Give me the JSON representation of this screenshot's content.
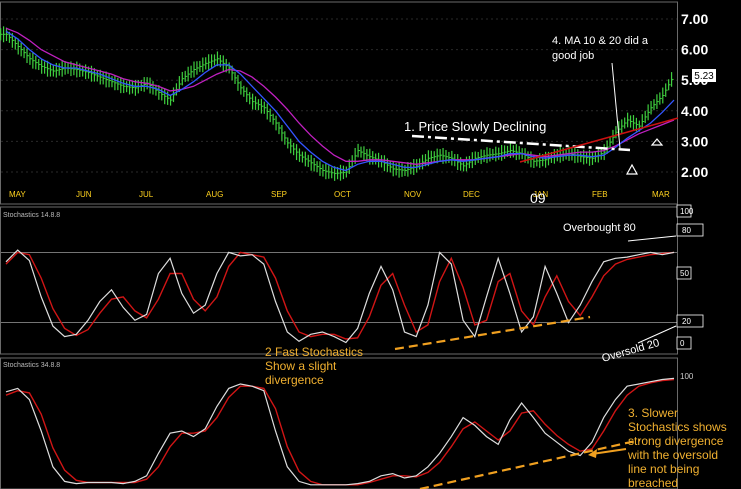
{
  "chart_data": [
    {
      "type": "line",
      "panel": "price",
      "price_ticks": [
        "7.00",
        "6.00",
        "5.00",
        "4.00",
        "3.00",
        "2.00"
      ],
      "price_tick_values": [
        7,
        6,
        5,
        4,
        3,
        2
      ],
      "ylim": [
        1.6,
        7.4
      ],
      "months": [
        "MAY",
        "JUN",
        "JUL",
        "AUG",
        "SEP",
        "OCT",
        "NOV",
        "DEC",
        "JAN",
        "FEB",
        "MAR"
      ],
      "year_marker": "09",
      "last_price_label": "5.23",
      "series": [
        {
          "values": [
            6.5,
            6.1,
            5.7,
            5.45,
            5.3,
            5.4,
            5.35,
            5.25,
            5.1,
            4.95,
            4.8,
            4.75,
            4.9,
            4.6,
            4.35,
            5.05,
            5.35,
            5.55,
            5.7,
            5.4,
            4.75,
            4.3,
            4.1,
            3.6,
            2.95,
            2.55,
            2.3,
            2.05,
            1.95,
            2.0,
            2.7,
            2.5,
            2.35,
            2.1,
            2.05,
            2.2,
            2.45,
            2.55,
            2.45,
            2.2,
            2.45,
            2.55,
            2.6,
            2.7,
            2.6,
            2.35,
            2.4,
            2.55,
            2.6,
            2.5,
            2.45,
            2.65,
            3.3,
            3.7,
            3.5,
            4.1,
            4.5,
            5.2
          ]
        },
        {
          "name": "MA 10",
          "values": [
            6.6,
            6.35,
            6.0,
            5.7,
            5.5,
            5.4,
            5.4,
            5.3,
            5.2,
            5.05,
            4.9,
            4.8,
            4.8,
            4.7,
            4.5,
            4.7,
            4.95,
            5.25,
            5.5,
            5.5,
            5.2,
            4.8,
            4.4,
            4.0,
            3.5,
            3.0,
            2.65,
            2.35,
            2.15,
            2.05,
            2.25,
            2.35,
            2.35,
            2.25,
            2.15,
            2.15,
            2.25,
            2.35,
            2.4,
            2.35,
            2.4,
            2.45,
            2.5,
            2.6,
            2.6,
            2.5,
            2.45,
            2.5,
            2.55,
            2.55,
            2.5,
            2.55,
            2.8,
            3.1,
            3.35,
            3.6,
            3.95,
            4.35
          ]
        },
        {
          "name": "MA 20",
          "values": [
            6.7,
            6.55,
            6.3,
            6.0,
            5.8,
            5.6,
            5.5,
            5.4,
            5.3,
            5.2,
            5.05,
            4.95,
            4.9,
            4.8,
            4.65,
            4.7,
            4.8,
            5.0,
            5.2,
            5.35,
            5.3,
            5.1,
            4.8,
            4.45,
            4.05,
            3.6,
            3.2,
            2.85,
            2.55,
            2.35,
            2.35,
            2.4,
            2.4,
            2.35,
            2.3,
            2.25,
            2.3,
            2.35,
            2.4,
            2.4,
            2.4,
            2.45,
            2.5,
            2.55,
            2.6,
            2.55,
            2.5,
            2.55,
            2.6,
            2.65,
            2.65,
            2.7,
            2.85,
            3.05,
            3.25,
            3.4,
            3.55,
            3.7
          ]
        }
      ]
    },
    {
      "type": "line",
      "panel": "stochastics-fast",
      "title": "Stochastics 14.8.8",
      "ylim": [
        0,
        100
      ],
      "y_labels": [
        "100",
        "80",
        "50",
        "20",
        "0"
      ],
      "y_label_values": [
        100,
        80,
        50,
        20,
        0
      ],
      "series": [
        {
          "values": [
            72,
            82,
            73,
            42,
            17,
            8,
            10,
            22,
            38,
            48,
            33,
            22,
            27,
            62,
            75,
            45,
            28,
            35,
            62,
            80,
            77,
            78,
            70,
            38,
            12,
            4,
            10,
            12,
            8,
            3,
            15,
            45,
            68,
            48,
            12,
            8,
            35,
            80,
            70,
            22,
            8,
            42,
            75,
            45,
            12,
            25,
            68,
            45,
            20,
            35,
            55,
            72,
            75,
            76,
            78,
            80,
            78,
            80
          ]
        },
        {
          "values": [
            70,
            80,
            78,
            58,
            32,
            15,
            9,
            14,
            28,
            40,
            42,
            30,
            24,
            40,
            62,
            62,
            40,
            30,
            42,
            68,
            80,
            78,
            76,
            58,
            30,
            12,
            8,
            10,
            10,
            6,
            7,
            25,
            52,
            62,
            35,
            12,
            18,
            55,
            75,
            50,
            18,
            22,
            55,
            62,
            30,
            18,
            42,
            60,
            38,
            26,
            42,
            60,
            70,
            74,
            76,
            78,
            79,
            80
          ]
        }
      ]
    },
    {
      "type": "line",
      "panel": "stochastics-slow",
      "title": "Stochastics 34.8.8",
      "ylim": [
        0,
        100
      ],
      "y_labels": [
        "100"
      ],
      "y_label_values": [
        100
      ],
      "series": [
        {
          "values": [
            85,
            88,
            78,
            50,
            18,
            5,
            3,
            4,
            4,
            4,
            3,
            5,
            10,
            30,
            48,
            50,
            45,
            52,
            72,
            88,
            92,
            90,
            86,
            50,
            18,
            5,
            2,
            2,
            2,
            2,
            3,
            5,
            10,
            12,
            8,
            10,
            18,
            30,
            45,
            62,
            55,
            45,
            38,
            60,
            75,
            62,
            48,
            40,
            32,
            28,
            40,
            62,
            78,
            90,
            92,
            94,
            96,
            97
          ]
        },
        {
          "values": [
            82,
            86,
            84,
            65,
            35,
            15,
            6,
            4,
            4,
            4,
            4,
            4,
            7,
            18,
            36,
            48,
            48,
            50,
            62,
            80,
            90,
            90,
            88,
            70,
            36,
            14,
            5,
            2,
            2,
            2,
            2,
            4,
            7,
            10,
            10,
            9,
            13,
            22,
            36,
            52,
            58,
            50,
            42,
            50,
            66,
            68,
            56,
            46,
            38,
            32,
            34,
            50,
            68,
            82,
            90,
            93,
            95,
            96
          ]
        }
      ]
    }
  ],
  "annotations": {
    "ma_note": [
      "4. MA 10 & 20 did a",
      "good job"
    ],
    "price_note": "1. Price Slowly Declining",
    "overbought": "Overbought 80",
    "oversold": "Oversold 20",
    "fast_note": [
      "2 Fast Stochastics",
      "Show a slight",
      "divergence"
    ],
    "slow_note": [
      "3. Slower",
      "Stochastics shows",
      "strong divergence",
      "with the oversold",
      "line not being",
      "breached"
    ]
  },
  "colors": {
    "price": "#3fcf3f",
    "ma10": "#3355ff",
    "ma20": "#c020c0",
    "stoch_k": "#dddddd",
    "stoch_d": "#d01515",
    "trend_red": "#cc1111",
    "divergence": "#f0a020",
    "note": "#f0b030"
  }
}
